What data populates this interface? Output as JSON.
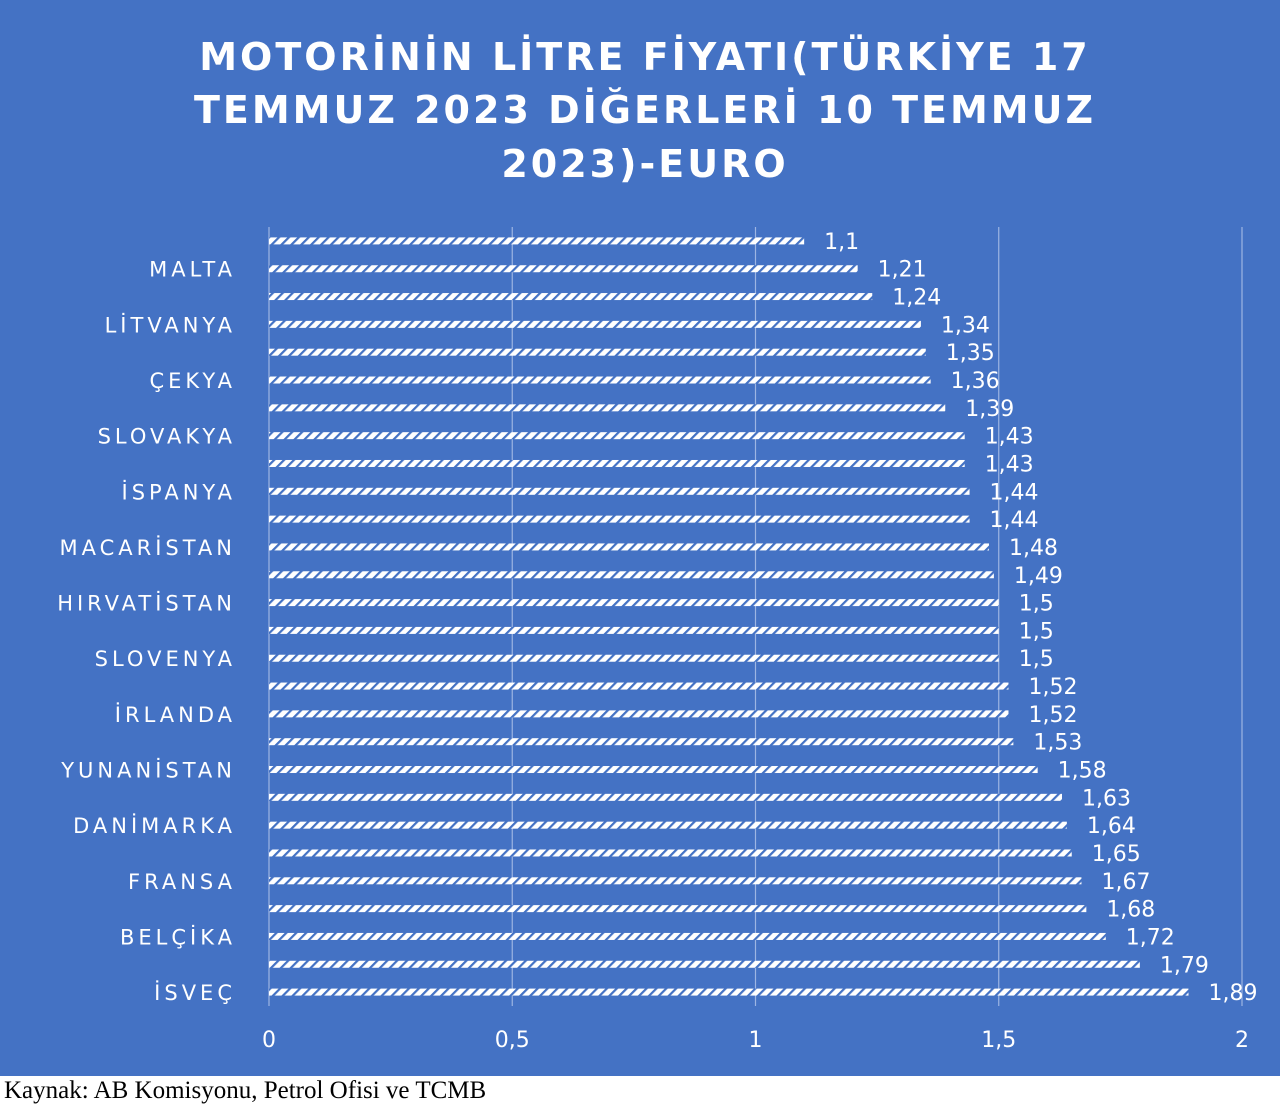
{
  "chart_data": {
    "type": "bar",
    "orientation": "horizontal",
    "title": "MOTORİNİN LİTRE FİYATI(TÜRKİYE 17 TEMMUZ 2023 DİĞERLERİ 10 TEMMUZ 2023)-EURO",
    "title_lines": [
      "MOTORİNİN  LİTRE FİYATI(TÜRKİYE  17",
      "TEMMUZ 2023 DİĞERLERİ 10 TEMMUZ",
      "2023)-EURO"
    ],
    "categories": [
      "",
      "MALTA",
      "",
      "LİTVANYA",
      "",
      "ÇEKYA",
      "",
      "SLOVAKYA",
      "",
      "İSPANYA",
      "",
      "MACARİSTAN",
      "",
      "HIRVATİSTAN",
      "",
      "SLOVENYA",
      "",
      "İRLANDA",
      "",
      "YUNANİSTAN",
      "",
      "DANİMARKA",
      "",
      "FRANSA",
      "",
      "BELÇİKA",
      "",
      "İSVEÇ"
    ],
    "values": [
      1.1,
      1.21,
      1.24,
      1.34,
      1.35,
      1.36,
      1.39,
      1.43,
      1.43,
      1.44,
      1.44,
      1.48,
      1.49,
      1.5,
      1.5,
      1.5,
      1.52,
      1.52,
      1.53,
      1.58,
      1.63,
      1.64,
      1.65,
      1.67,
      1.68,
      1.72,
      1.79,
      1.89
    ],
    "value_labels": [
      "1,1",
      "1,21",
      "1,24",
      "1,34",
      "1,35",
      "1,36",
      "1,39",
      "1,43",
      "1,43",
      "1,44",
      "1,44",
      "1,48",
      "1,49",
      "1,5",
      "1,5",
      "1,5",
      "1,52",
      "1,52",
      "1,53",
      "1,58",
      "1,63",
      "1,64",
      "1,65",
      "1,67",
      "1,68",
      "1,72",
      "1,79",
      "1,89"
    ],
    "xlim": [
      0,
      2
    ],
    "xticks": [
      0,
      0.5,
      1,
      1.5,
      2
    ],
    "xtick_labels": [
      "0",
      "0,5",
      "1",
      "1,5",
      "2"
    ],
    "xlabel": "",
    "ylabel": "",
    "grid": true,
    "legend": "none",
    "colors": {
      "background": "#4472c4",
      "bar_fill": "#ffffff",
      "text": "#ffffff",
      "gridline": "#9db5e3"
    }
  },
  "source_note": "Kaynak: AB Komisyonu, Petrol Ofisi ve TCMB"
}
